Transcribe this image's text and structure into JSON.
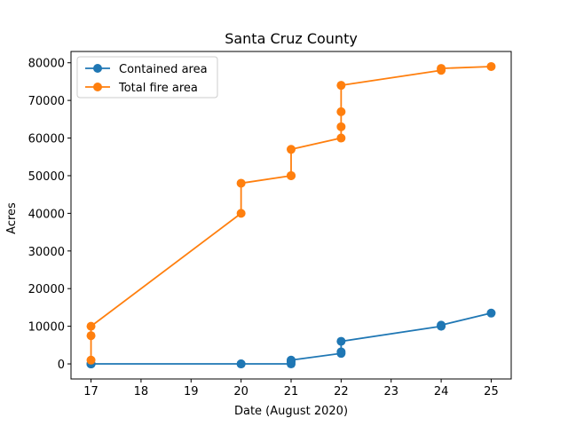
{
  "chart_data": {
    "type": "line",
    "title": "Santa Cruz County",
    "xlabel": "Date (August 2020)",
    "ylabel": "Acres",
    "xlim": [
      16.6,
      25.4
    ],
    "ylim": [
      -4000,
      83000
    ],
    "xticks": [
      17,
      18,
      19,
      20,
      21,
      22,
      23,
      24,
      25
    ],
    "yticks": [
      0,
      10000,
      20000,
      30000,
      40000,
      50000,
      60000,
      70000,
      80000
    ],
    "grid": false,
    "legend_position": "top-left",
    "series": [
      {
        "name": "Contained area",
        "color": "#1f77b4",
        "marker": "circle",
        "x": [
          17,
          17,
          17,
          17,
          20,
          20,
          21,
          21,
          21,
          21,
          22,
          22,
          22,
          24,
          24,
          25
        ],
        "y": [
          0,
          0,
          0,
          0,
          0,
          0,
          0,
          500,
          800,
          1000,
          2800,
          3200,
          6000,
          10000,
          10300,
          13500
        ]
      },
      {
        "name": "Total fire area",
        "color": "#ff7f0e",
        "marker": "circle",
        "x": [
          17,
          17,
          17,
          20,
          20,
          21,
          21,
          21,
          22,
          22,
          22,
          22,
          24,
          24,
          25
        ],
        "y": [
          1000,
          7500,
          10000,
          40000,
          48000,
          50000,
          50000,
          57000,
          60000,
          63000,
          67000,
          74000,
          78000,
          78500,
          79000
        ]
      }
    ]
  }
}
